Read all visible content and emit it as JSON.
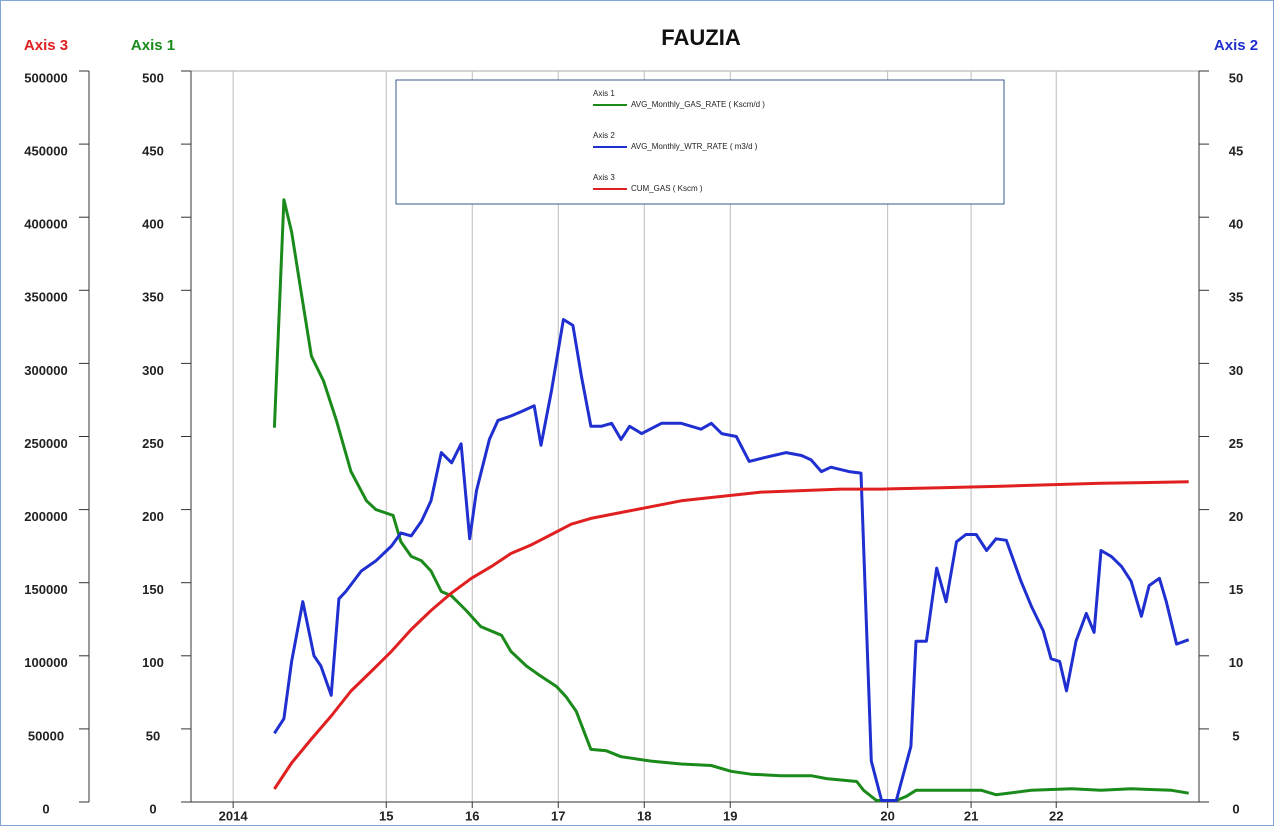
{
  "chart_data": {
    "type": "line",
    "title": "FAUZIA",
    "y_label": "Axis 1",
    "y2_label": "Axis 2",
    "y3_label": "Axis 3",
    "xlim": [
      2012.73,
      2024.45
    ],
    "xticks": [
      {
        "value": 2013.22,
        "label": "2014"
      },
      {
        "value": 2015,
        "label": "15"
      },
      {
        "value": 2016,
        "label": "16"
      },
      {
        "value": 2017,
        "label": "17"
      },
      {
        "value": 2018,
        "label": "18"
      },
      {
        "value": 2019,
        "label": "19"
      },
      {
        "value": 2020.83,
        "label": "20"
      },
      {
        "value": 2021.8,
        "label": "21"
      },
      {
        "value": 2022.79,
        "label": "22"
      }
    ],
    "ylim": [
      0,
      500
    ],
    "yticks": [
      0,
      50,
      100,
      150,
      200,
      250,
      300,
      350,
      400,
      450,
      500
    ],
    "y2lim": [
      0,
      50
    ],
    "y2ticks": [
      0,
      5,
      10,
      15,
      20,
      25,
      30,
      35,
      40,
      45,
      50
    ],
    "y3lim": [
      0,
      500000
    ],
    "y3ticks": [
      0,
      50000,
      100000,
      150000,
      200000,
      250000,
      300000,
      350000,
      400000,
      450000,
      500000
    ],
    "grid": true,
    "legend": "top",
    "y_color": "#1a8a1a",
    "y2_color": "#1f2fd0",
    "y3_color": "#e02020",
    "series": [
      {
        "name": "AVG_Monthly_GAS_RATE ( Kscm/d )",
        "color": "#1a8a1a",
        "axis": "y",
        "x": [
          2013.7,
          2013.81,
          2013.9,
          2014.01,
          2014.13,
          2014.27,
          2014.42,
          2014.59,
          2014.77,
          2014.88,
          2015.08,
          2015.17,
          2015.29,
          2015.41,
          2015.52,
          2015.64,
          2015.76,
          2015.93,
          2016.1,
          2016.34,
          2016.45,
          2016.63,
          2016.8,
          2016.98,
          2017.09,
          2017.21,
          2017.38,
          2017.56,
          2017.73,
          2018.08,
          2018.43,
          2018.78,
          2019.01,
          2019.24,
          2019.59,
          2019.94,
          2020.12,
          2020.47,
          2020.55,
          2020.7,
          2020.93,
          2021.05,
          2021.16,
          2021.45,
          2021.92,
          2022.09,
          2022.5,
          2022.97,
          2023.31,
          2023.66,
          2024.13,
          2024.33
        ],
        "values": [
          256,
          412,
          390,
          349,
          305,
          288,
          261,
          226,
          206,
          200,
          196,
          178,
          168,
          165,
          158,
          144,
          141,
          131,
          120,
          114,
          103,
          93,
          86,
          79,
          72,
          62,
          36,
          35,
          31,
          28,
          26,
          25,
          21,
          19,
          18,
          18,
          16,
          14,
          8,
          1,
          1,
          4,
          8,
          8,
          8,
          5,
          8,
          9,
          8,
          9,
          8,
          6
        ]
      },
      {
        "name": "AVG_Monthly_WTR_RATE ( m3/d )",
        "color": "#1f2fd0",
        "axis": "y2",
        "x": [
          2013.7,
          2013.81,
          2013.9,
          2014.03,
          2014.16,
          2014.24,
          2014.36,
          2014.45,
          2014.53,
          2014.71,
          2014.88,
          2015.06,
          2015.17,
          2015.29,
          2015.41,
          2015.52,
          2015.64,
          2015.76,
          2015.87,
          2015.97,
          2016.05,
          2016.2,
          2016.3,
          2016.45,
          2016.57,
          2016.72,
          2016.8,
          2016.92,
          2017.06,
          2017.17,
          2017.27,
          2017.38,
          2017.5,
          2017.62,
          2017.73,
          2017.83,
          2017.97,
          2018.2,
          2018.43,
          2018.66,
          2018.78,
          2018.9,
          2019.07,
          2019.22,
          2019.36,
          2019.65,
          2019.83,
          2019.94,
          2020.06,
          2020.17,
          2020.38,
          2020.52,
          2020.64,
          2020.76,
          2020.93,
          2021.1,
          2021.16,
          2021.28,
          2021.4,
          2021.51,
          2021.63,
          2021.74,
          2021.86,
          2021.98,
          2022.09,
          2022.21,
          2022.38,
          2022.5,
          2022.64,
          2022.73,
          2022.83,
          2022.91,
          2023.02,
          2023.14,
          2023.23,
          2023.31,
          2023.43,
          2023.55,
          2023.66,
          2023.78,
          2023.87,
          2023.99,
          2024.07,
          2024.19,
          2024.33
        ],
        "values": [
          4.7,
          5.7,
          9.6,
          13.7,
          10,
          9.3,
          7.3,
          13.9,
          14.4,
          15.8,
          16.5,
          17.5,
          18.4,
          18.2,
          19.2,
          20.6,
          23.9,
          23.2,
          24.5,
          18,
          21.3,
          24.8,
          26.1,
          26.4,
          26.7,
          27.1,
          24.4,
          28.1,
          33,
          32.6,
          29.1,
          25.7,
          25.7,
          25.9,
          24.8,
          25.7,
          25.2,
          25.9,
          25.9,
          25.5,
          25.9,
          25.2,
          25,
          23.3,
          23.5,
          23.9,
          23.7,
          23.4,
          22.6,
          22.9,
          22.6,
          22.5,
          2.8,
          0.1,
          0.1,
          3.8,
          11,
          11,
          16,
          13.7,
          17.8,
          18.3,
          18.3,
          17.2,
          18,
          17.9,
          15.1,
          13.4,
          11.7,
          9.8,
          9.6,
          7.6,
          11,
          12.9,
          11.6,
          17.2,
          16.8,
          16.1,
          15.1,
          12.7,
          14.8,
          15.3,
          13.7,
          10.8,
          11.1
        ]
      },
      {
        "name": "CUM_GAS ( Kscm )",
        "color": "#e02020",
        "axis": "y3",
        "x": [
          2013.7,
          2013.9,
          2014.13,
          2014.36,
          2014.59,
          2014.83,
          2015.06,
          2015.29,
          2015.52,
          2015.76,
          2015.99,
          2016.22,
          2016.45,
          2016.69,
          2016.92,
          2017.15,
          2017.38,
          2017.73,
          2018.08,
          2018.43,
          2018.9,
          2019.36,
          2019.83,
          2020.29,
          2020.76,
          2021.45,
          2022.15,
          2023.31,
          2024.33
        ],
        "values": [
          8900,
          26700,
          43100,
          58800,
          75900,
          89600,
          103000,
          118000,
          131000,
          143000,
          153000,
          161000,
          170000,
          176000,
          183000,
          190000,
          194000,
          198000,
          202000,
          206000,
          209000,
          212000,
          213000,
          214000,
          214000,
          215000,
          216000,
          218000,
          219000
        ]
      }
    ]
  }
}
